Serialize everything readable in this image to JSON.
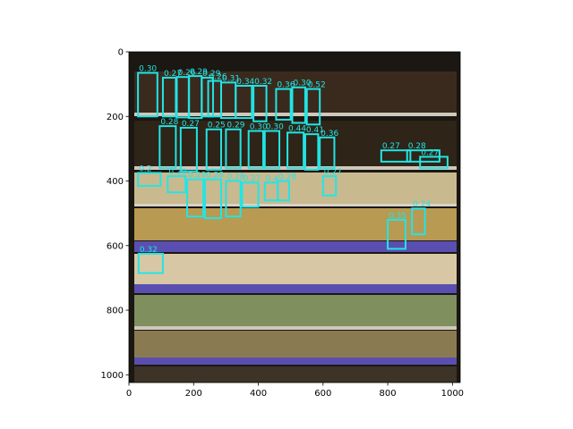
{
  "chart_data": {
    "type": "image-with-detections",
    "title": "",
    "xlabel": "",
    "ylabel": "",
    "xlim": [
      0,
      1024
    ],
    "ylim": [
      1024,
      0
    ],
    "x_ticks": [
      0,
      200,
      400,
      600,
      800,
      1000
    ],
    "y_ticks": [
      0,
      200,
      400,
      600,
      800,
      1000
    ],
    "grid": false,
    "box_color": "#22e5e5",
    "image_colors": {
      "background": "#1b1712",
      "shelf_edge": "#cfc8bb",
      "coffee_bags": "#3a2a1e",
      "tea_boxes": "#c9b98f",
      "price_tags": "#5a4fb0"
    },
    "detections": [
      {
        "score": "0.30",
        "x": 28,
        "y": 65,
        "w": 60,
        "h": 135
      },
      {
        "score": "0.27",
        "x": 105,
        "y": 80,
        "w": 40,
        "h": 120
      },
      {
        "score": "0.26",
        "x": 148,
        "y": 78,
        "w": 38,
        "h": 125
      },
      {
        "score": "0.29",
        "x": 185,
        "y": 75,
        "w": 40,
        "h": 130
      },
      {
        "score": "0.29",
        "x": 225,
        "y": 80,
        "w": 35,
        "h": 120
      },
      {
        "score": "0.26",
        "x": 245,
        "y": 90,
        "w": 40,
        "h": 110
      },
      {
        "score": "0.31",
        "x": 285,
        "y": 95,
        "w": 45,
        "h": 110
      },
      {
        "score": "0.34",
        "x": 330,
        "y": 105,
        "w": 50,
        "h": 100
      },
      {
        "score": "0.32",
        "x": 385,
        "y": 105,
        "w": 40,
        "h": 110
      },
      {
        "score": "0.36",
        "x": 455,
        "y": 115,
        "w": 45,
        "h": 95
      },
      {
        "score": "0.30",
        "x": 505,
        "y": 110,
        "w": 40,
        "h": 110
      },
      {
        "score": "0.52",
        "x": 550,
        "y": 115,
        "w": 40,
        "h": 110
      },
      {
        "score": "0.28",
        "x": 95,
        "y": 230,
        "w": 50,
        "h": 130
      },
      {
        "score": "0.27",
        "x": 160,
        "y": 235,
        "w": 50,
        "h": 135
      },
      {
        "score": "0.25",
        "x": 240,
        "y": 240,
        "w": 45,
        "h": 125
      },
      {
        "score": "0.29",
        "x": 300,
        "y": 240,
        "w": 45,
        "h": 120
      },
      {
        "score": "0.30",
        "x": 370,
        "y": 245,
        "w": 45,
        "h": 115
      },
      {
        "score": "0.30",
        "x": 420,
        "y": 245,
        "w": 45,
        "h": 115
      },
      {
        "score": "0.44",
        "x": 490,
        "y": 250,
        "w": 50,
        "h": 110
      },
      {
        "score": "0.41",
        "x": 545,
        "y": 255,
        "w": 40,
        "h": 110
      },
      {
        "score": "0.36",
        "x": 590,
        "y": 265,
        "w": 45,
        "h": 95
      },
      {
        "score": "0.27",
        "x": 780,
        "y": 305,
        "w": 90,
        "h": 35
      },
      {
        "score": "0.28",
        "x": 860,
        "y": 305,
        "w": 100,
        "h": 35
      },
      {
        "score": "0.27",
        "x": 900,
        "y": 325,
        "w": 85,
        "h": 35
      },
      {
        "score": "0.2",
        "x": 28,
        "y": 375,
        "w": 70,
        "h": 40
      },
      {
        "score": "0.28",
        "x": 120,
        "y": 385,
        "w": 55,
        "h": 50
      },
      {
        "score": "0.28",
        "x": 180,
        "y": 395,
        "w": 50,
        "h": 115
      },
      {
        "score": "0.28",
        "x": 235,
        "y": 395,
        "w": 50,
        "h": 120
      },
      {
        "score": "0.28",
        "x": 300,
        "y": 400,
        "w": 45,
        "h": 110
      },
      {
        "score": "0.27",
        "x": 350,
        "y": 405,
        "w": 50,
        "h": 75
      },
      {
        "score": "0.4",
        "x": 420,
        "y": 405,
        "w": 40,
        "h": 55
      },
      {
        "score": "0.28",
        "x": 460,
        "y": 400,
        "w": 35,
        "h": 60
      },
      {
        "score": "0.27",
        "x": 600,
        "y": 385,
        "w": 40,
        "h": 60
      },
      {
        "score": "0.24",
        "x": 875,
        "y": 485,
        "w": 40,
        "h": 80
      },
      {
        "score": "0.35",
        "x": 800,
        "y": 520,
        "w": 55,
        "h": 90
      },
      {
        "score": "0.32",
        "x": 30,
        "y": 625,
        "w": 75,
        "h": 60
      }
    ]
  }
}
